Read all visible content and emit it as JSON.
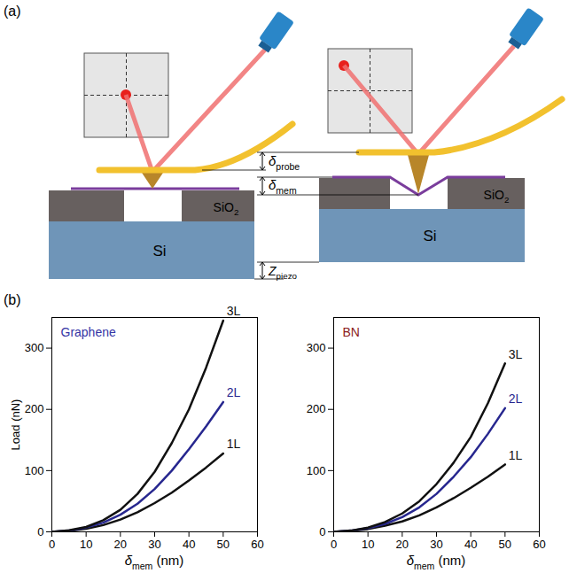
{
  "panels": {
    "a": "(a)",
    "b": "(b)"
  },
  "diagram": {
    "probe_deflection": {
      "symbol": "δ",
      "subscript": "probe"
    },
    "membrane_deflection": {
      "symbol": "δ",
      "subscript": "mem"
    },
    "piezo_displacement": {
      "symbol": "Z",
      "subscript": "piezo"
    },
    "oxide_layer": {
      "text": "SiO",
      "subscript": "2"
    },
    "substrate": "Si"
  },
  "chart_data": [
    {
      "type": "line",
      "title": "Graphene",
      "xlabel": {
        "symbol": "δ",
        "subscript": "mem",
        "suffix": " (nm)"
      },
      "ylabel": "Load (nN)",
      "x": [
        0,
        5,
        10,
        15,
        20,
        25,
        30,
        35,
        40,
        45,
        50
      ],
      "series": [
        {
          "name": "1L",
          "color": "#111111",
          "values": [
            0,
            1.5,
            5,
            11,
            20,
            32,
            47,
            64,
            84,
            105,
            128
          ]
        },
        {
          "name": "2L",
          "color": "#27278f",
          "values": [
            0,
            2,
            7,
            15,
            28,
            46,
            70,
            100,
            135,
            172,
            212
          ]
        },
        {
          "name": "3L",
          "color": "#111111",
          "values": [
            0,
            2.5,
            8,
            19,
            36,
            62,
            98,
            145,
            200,
            268,
            345
          ]
        }
      ],
      "xlim": [
        0,
        60
      ],
      "xticks": [
        0,
        10,
        20,
        30,
        40,
        50,
        60
      ],
      "ylim": [
        0,
        350
      ],
      "yticks": [
        0,
        100,
        200,
        300
      ]
    },
    {
      "type": "line",
      "title": "BN",
      "xlabel": {
        "symbol": "δ",
        "subscript": "mem",
        "suffix": " (nm)"
      },
      "x": [
        0,
        5,
        10,
        15,
        20,
        25,
        30,
        35,
        40,
        45,
        50
      ],
      "series": [
        {
          "name": "1L",
          "color": "#111111",
          "values": [
            0,
            1.5,
            4.5,
            10,
            17,
            27,
            40,
            55,
            72,
            90,
            110
          ]
        },
        {
          "name": "2L",
          "color": "#27278f",
          "values": [
            0,
            2,
            6,
            13,
            24,
            40,
            62,
            90,
            122,
            160,
            202
          ]
        },
        {
          "name": "3L",
          "color": "#111111",
          "values": [
            0,
            2,
            7,
            16,
            30,
            50,
            78,
            113,
            155,
            210,
            275
          ]
        }
      ],
      "xlim": [
        0,
        60
      ],
      "xticks": [
        0,
        10,
        20,
        30,
        40,
        50,
        60
      ],
      "ylim": [
        0,
        350
      ],
      "yticks": [
        0,
        100,
        200,
        300
      ]
    }
  ]
}
